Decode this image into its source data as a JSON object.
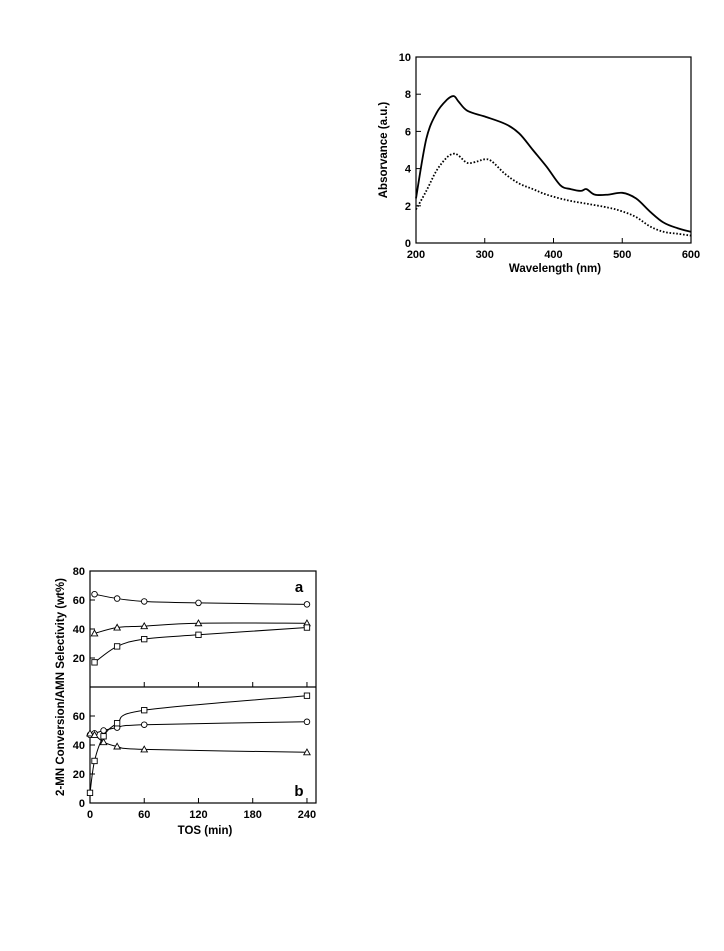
{
  "chart_data": [
    {
      "type": "line",
      "title": "",
      "xlabel": "Wavelength (nm)",
      "ylabel": "Absorvance (a.u.)",
      "xlim": [
        200,
        600
      ],
      "ylim": [
        0,
        10
      ],
      "xticks": [
        "200",
        "300",
        "400",
        "500",
        "600"
      ],
      "yticks": [
        "0",
        "2",
        "4",
        "6",
        "8",
        "10"
      ],
      "grid": false,
      "series": [
        {
          "style": "solid",
          "x": [
            200,
            215,
            230,
            245,
            255,
            262,
            275,
            300,
            330,
            350,
            370,
            390,
            410,
            425,
            440,
            448,
            460,
            480,
            500,
            520,
            540,
            560,
            580,
            600
          ],
          "y": [
            2.4,
            5.6,
            7.0,
            7.7,
            7.9,
            7.6,
            7.1,
            6.8,
            6.4,
            5.9,
            5.0,
            4.1,
            3.1,
            2.9,
            2.8,
            2.9,
            2.6,
            2.6,
            2.7,
            2.4,
            1.7,
            1.1,
            0.8,
            0.6
          ]
        },
        {
          "style": "dotted",
          "x": [
            200,
            215,
            230,
            245,
            255,
            262,
            275,
            290,
            300,
            310,
            330,
            350,
            370,
            390,
            420,
            450,
            480,
            500,
            520,
            540,
            560,
            580,
            600
          ],
          "y": [
            1.8,
            2.8,
            3.9,
            4.6,
            4.8,
            4.7,
            4.3,
            4.4,
            4.5,
            4.4,
            3.7,
            3.2,
            2.9,
            2.6,
            2.3,
            2.1,
            1.9,
            1.7,
            1.4,
            0.9,
            0.6,
            0.5,
            0.4
          ]
        }
      ]
    },
    {
      "type": "line",
      "title": "",
      "xlabel": "TOS (min)",
      "ylabel": "2-MN Conversion/AMN Selectivity (wt%)",
      "xticks": [
        "0",
        "60",
        "120",
        "180",
        "240"
      ],
      "grid": false,
      "panels": [
        {
          "label": "a",
          "ylim": [
            0,
            80
          ],
          "yticks": [
            "20",
            "40",
            "60",
            "80"
          ],
          "series": [
            {
              "marker": "circle",
              "x": [
                5,
                30,
                60,
                120,
                240
              ],
              "y": [
                64,
                61,
                59,
                58,
                57
              ]
            },
            {
              "marker": "triangle",
              "x": [
                5,
                30,
                60,
                120,
                240
              ],
              "y": [
                37,
                41,
                42,
                44,
                44
              ]
            },
            {
              "marker": "square",
              "x": [
                5,
                30,
                60,
                120,
                240
              ],
              "y": [
                17,
                28,
                33,
                36,
                41
              ]
            }
          ]
        },
        {
          "label": "b",
          "ylim": [
            0,
            80
          ],
          "yticks": [
            "0",
            "20",
            "40",
            "60"
          ],
          "series": [
            {
              "marker": "circle",
              "x": [
                0,
                5,
                15,
                30,
                60,
                240
              ],
              "y": [
                47,
                48,
                50,
                52,
                54,
                56
              ]
            },
            {
              "marker": "triangle",
              "x": [
                0,
                5,
                15,
                30,
                60,
                240
              ],
              "y": [
                48,
                47,
                42,
                39,
                37,
                35
              ]
            },
            {
              "marker": "square",
              "x": [
                0,
                5,
                15,
                30,
                60,
                240
              ],
              "y": [
                7,
                29,
                46,
                55,
                64,
                74
              ]
            }
          ]
        }
      ]
    }
  ]
}
